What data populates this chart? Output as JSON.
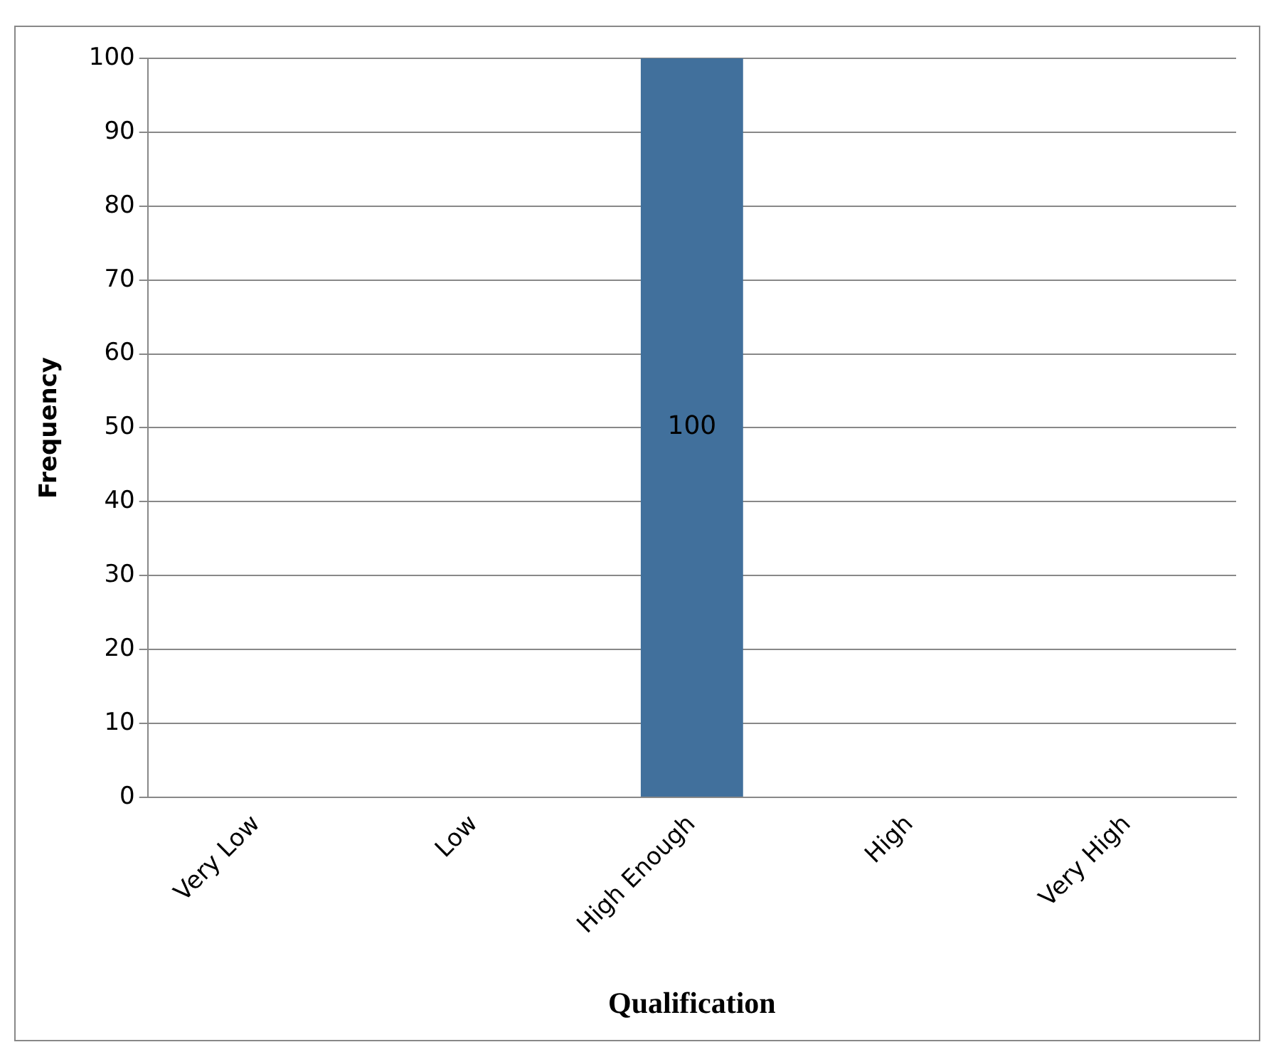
{
  "chart_data": {
    "type": "bar",
    "xlabel": "Qualification",
    "ylabel": "Frequency",
    "categories": [
      "Very Low",
      "Low",
      "High Enough",
      "High",
      "Very High"
    ],
    "values": [
      0,
      0,
      100,
      0,
      0
    ],
    "value_labels": [
      null,
      null,
      "100",
      null,
      null
    ],
    "color": "#41709c",
    "ylim": [
      0,
      100
    ],
    "yticks": [
      0,
      10,
      20,
      30,
      40,
      50,
      60,
      70,
      80,
      90,
      100
    ],
    "grid": "y",
    "legend": false
  }
}
